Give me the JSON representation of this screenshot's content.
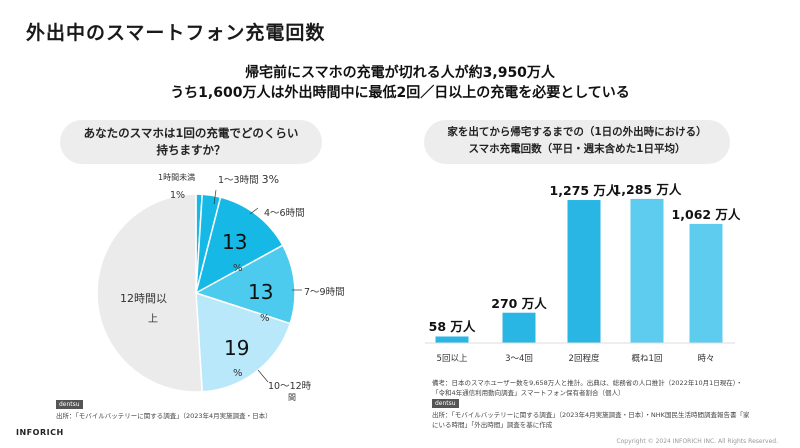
{
  "title": "外出中のスマートフォン充電回数",
  "headline_1": "帰宅前にスマホの充電が切れる人が約3,950万人",
  "headline_2": "うち1,600万人は外出時間中に最低2回／日以上の充電を必要としている",
  "left_chart": {
    "question_1": "あなたのスマホは1回の充電でどのくらい",
    "question_2": "持ちますか？",
    "source_logo": "dentsu",
    "source": "出所：「モバイルバッテリーに関する調査」（2023年4月実施調査・日本）",
    "labels": {
      "under1": "1時間未満",
      "under1_pct": "1%",
      "h1_3": "1〜3時間",
      "h1_3_pct": "3%",
      "h4_6": "4〜6時間",
      "h4_6_val": "13",
      "h7_9": "7〜9時間",
      "h7_9_val": "13",
      "h10_12_a": "10〜12時",
      "h10_12_b": "間",
      "h10_12_val": "19",
      "pct": "%",
      "over12_a": "12時間以",
      "over12_b": "上"
    }
  },
  "right_chart": {
    "question_1": "家を出てから帰宅するまでの（1日の外出時における）",
    "question_2": "スマホ充電回数（平日・週末含めた1日平均）",
    "source_logo": "dentsu",
    "note_1": "備考：日本のスマホユーザー数を9,658万人と推計。出典は、総務省の人口推計（2022年10月1日現在）・",
    "note_2": "「令和4年通信利用動向調査」スマートフォン保有者割合（個人）",
    "source_1": "出所：「モバイルバッテリーに関する調査」（2023年4月実施調査・日本）・NHK国民生活時間調査報告書「家",
    "source_2": "にいる時間」「外出時間」調査を基に作成"
  },
  "chart_data": [
    {
      "type": "pie",
      "title": "あなたのスマホは1回の充電でどのくらい持ちますか？",
      "categories": [
        "1時間未満",
        "1〜3時間",
        "4〜6時間",
        "7〜9時間",
        "10〜12時間",
        "12時間以上"
      ],
      "values": [
        1,
        3,
        13,
        13,
        19,
        51
      ],
      "unit": "%"
    },
    {
      "type": "bar",
      "title": "家を出てから帰宅するまでのスマホ充電回数",
      "categories": [
        "5回以上",
        "3〜4回",
        "2回程度",
        "概ね1回",
        "時々"
      ],
      "values": [
        58,
        270,
        1275,
        1285,
        1062
      ],
      "labels": [
        "58 万人",
        "270 万人",
        "1,275 万人",
        "1,285 万人",
        "1,062 万人"
      ],
      "unit": "万人",
      "ylim": [
        0,
        1400
      ]
    }
  ],
  "colors": {
    "pie_grey": "#ebebeb",
    "pie_dark": "#16b9e6",
    "pie_mid": "#4ccbef",
    "pie_light": "#8fdcf5",
    "pie_pale": "#b8e8f9",
    "bar": "#29b6e5",
    "bar_light": "#5dccef"
  },
  "footer": {
    "brand": "INFORICH",
    "copyright": "Copyright © 2024 INFORICH INC. All Rights Reserved."
  }
}
